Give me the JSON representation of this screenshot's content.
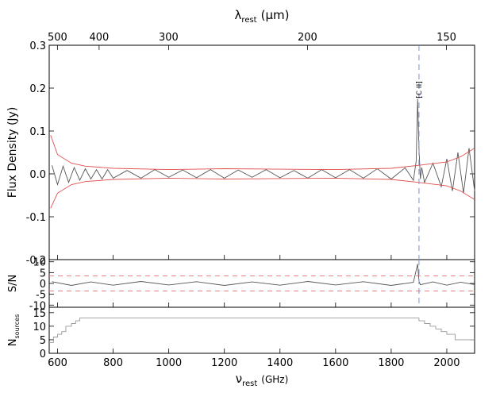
{
  "chart_data": [
    {
      "type": "line",
      "panel": "flux",
      "ylabel": "Flux Density (Jy)",
      "top_axis_label": "λ",
      "top_axis_label_sub": "rest",
      "top_axis_label_unit": "(μm)",
      "top_ticks_um": [
        500,
        400,
        300,
        200,
        150
      ],
      "ylim": [
        -0.2,
        0.3
      ],
      "y_ticks": [
        -0.2,
        -0.1,
        0.0,
        0.1,
        0.2,
        0.3
      ],
      "y_tick_labels": [
        "-0.2",
        "-0.1",
        "0.0",
        "0.1",
        "0.2",
        "0.3"
      ],
      "xlim": [
        570,
        2100
      ],
      "series": [
        {
          "role": "spectrum",
          "color": "#555555",
          "x": [
            580,
            600,
            620,
            640,
            660,
            680,
            700,
            720,
            740,
            760,
            780,
            800,
            850,
            900,
            950,
            1000,
            1050,
            1100,
            1150,
            1200,
            1250,
            1300,
            1350,
            1400,
            1450,
            1500,
            1550,
            1600,
            1650,
            1700,
            1750,
            1800,
            1850,
            1880,
            1890,
            1895,
            1900,
            1905,
            1910,
            1920,
            1950,
            1980,
            2000,
            2020,
            2040,
            2060,
            2080,
            2100
          ],
          "y": [
            0.02,
            -0.025,
            0.018,
            -0.02,
            0.015,
            -0.015,
            0.012,
            -0.012,
            0.01,
            -0.012,
            0.01,
            -0.01,
            0.008,
            -0.01,
            0.01,
            -0.008,
            0.009,
            -0.009,
            0.01,
            -0.01,
            0.009,
            -0.008,
            0.01,
            -0.009,
            0.008,
            -0.01,
            0.01,
            -0.009,
            0.01,
            -0.01,
            0.012,
            -0.012,
            0.014,
            -0.015,
            0.03,
            0.175,
            0.06,
            -0.012,
            0.015,
            -0.02,
            0.025,
            -0.03,
            0.035,
            -0.04,
            0.05,
            -0.045,
            0.06,
            -0.04
          ]
        },
        {
          "role": "upper-envelope",
          "color": "#e05050",
          "x": [
            575,
            600,
            650,
            700,
            800,
            1000,
            1200,
            1400,
            1600,
            1800,
            1900,
            2000,
            2050,
            2100
          ],
          "y": [
            0.09,
            0.045,
            0.025,
            0.018,
            0.013,
            0.01,
            0.012,
            0.011,
            0.01,
            0.013,
            0.02,
            0.028,
            0.04,
            0.06
          ]
        },
        {
          "role": "lower-envelope",
          "color": "#e05050",
          "x": [
            575,
            600,
            650,
            700,
            800,
            1000,
            1200,
            1400,
            1600,
            1800,
            1900,
            2000,
            2050,
            2100
          ],
          "y": [
            -0.08,
            -0.045,
            -0.025,
            -0.018,
            -0.013,
            -0.01,
            -0.012,
            -0.011,
            -0.01,
            -0.013,
            -0.02,
            -0.028,
            -0.04,
            -0.06
          ]
        }
      ],
      "marker": {
        "x": 1900,
        "label": "[C II]",
        "color": "#7a8ed8"
      }
    },
    {
      "type": "line",
      "panel": "snr",
      "ylabel": "S/N",
      "ylim": [
        -11,
        11
      ],
      "y_ticks": [
        -10,
        -5,
        0,
        5,
        10
      ],
      "y_tick_labels": [
        "-10",
        "-5",
        "0",
        "5",
        "10"
      ],
      "reference_lines": [
        3.5,
        -3.5
      ],
      "xlim": [
        570,
        2100
      ],
      "series": [
        {
          "role": "snr",
          "color": "#555555",
          "x": [
            580,
            650,
            720,
            800,
            900,
            1000,
            1100,
            1200,
            1300,
            1400,
            1500,
            1600,
            1700,
            1800,
            1880,
            1895,
            1900,
            1905,
            1950,
            2000,
            2050,
            2100
          ],
          "y": [
            0.8,
            -0.9,
            0.7,
            -0.8,
            0.9,
            -0.7,
            0.8,
            -0.9,
            0.7,
            -0.8,
            0.9,
            -0.7,
            0.8,
            -0.9,
            0.5,
            9,
            1,
            -0.6,
            0.7,
            -0.8,
            0.6,
            -0.5
          ]
        }
      ],
      "marker": {
        "x": 1900
      }
    },
    {
      "type": "line",
      "panel": "nsources",
      "ylabel": "N",
      "ylabel_sub": "sources",
      "ylim": [
        0,
        17
      ],
      "y_ticks": [
        0,
        5,
        10,
        15
      ],
      "y_tick_labels": [
        "0",
        "5",
        "10",
        "15"
      ],
      "xlim": [
        570,
        2100
      ],
      "xlabel": "ν",
      "xlabel_sub": "rest",
      "xlabel_unit": "(GHz)",
      "x_ticks": [
        600,
        800,
        1000,
        1200,
        1400,
        1600,
        1800,
        2000
      ],
      "x_tick_labels": [
        "600",
        "800",
        "1000",
        "1200",
        "1400",
        "1600",
        "1800",
        "2000"
      ],
      "series": [
        {
          "role": "count",
          "color": "#999999",
          "step": true,
          "x": [
            570,
            585,
            600,
            615,
            630,
            650,
            665,
            680,
            1880,
            1900,
            1920,
            1940,
            1960,
            1980,
            2000,
            2030,
            2100
          ],
          "y": [
            4,
            6,
            7,
            8,
            10,
            11,
            12,
            13,
            13,
            12,
            11,
            10,
            9,
            8,
            7,
            5,
            5
          ]
        }
      ]
    }
  ]
}
